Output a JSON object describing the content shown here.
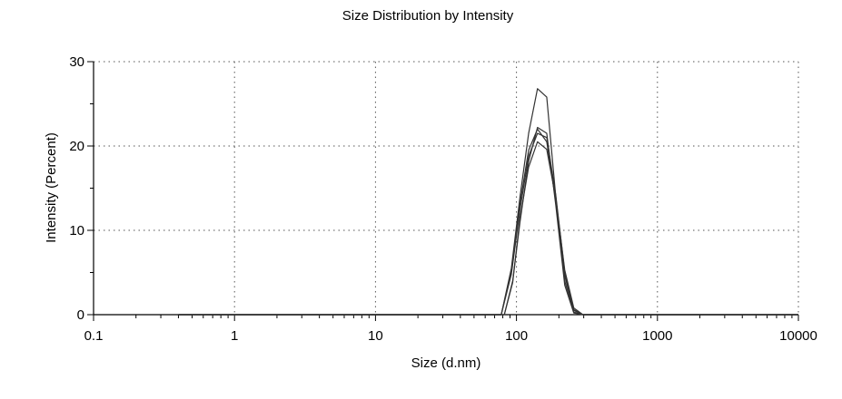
{
  "chart_data": {
    "type": "line",
    "title": "Size Distribution by Intensity",
    "xlabel": "Size (d.nm)",
    "ylabel": "Intensity (Percent)",
    "x_scale": "log",
    "xlim": [
      0.1,
      10000
    ],
    "ylim": [
      0,
      30
    ],
    "x_ticks": [
      0.1,
      1,
      10,
      100,
      1000,
      10000
    ],
    "x_tick_labels": [
      "0.1",
      "1",
      "10",
      "100",
      "1000",
      "10000"
    ],
    "y_ticks": [
      0,
      10,
      20,
      30
    ],
    "y_tick_labels": [
      "0",
      "10",
      "20",
      "30"
    ],
    "grid": true,
    "series": [
      {
        "color": "#333333",
        "x": [
          0.4,
          78,
          92,
          106,
          122,
          141,
          164,
          190,
          220,
          255,
          296,
          10000
        ],
        "y": [
          0,
          0,
          5.5,
          14.0,
          21.5,
          26.8,
          25.8,
          14.0,
          4.0,
          0.3,
          0,
          0
        ]
      },
      {
        "color": "#333333",
        "x": [
          0.4,
          78,
          92,
          106,
          122,
          141,
          164,
          190,
          220,
          255,
          296,
          10000
        ],
        "y": [
          0,
          0,
          5.2,
          13.2,
          19.5,
          22.0,
          20.5,
          13.5,
          4.6,
          0.5,
          0,
          0
        ]
      },
      {
        "color": "#333333",
        "x": [
          0.4,
          78,
          92,
          106,
          122,
          141,
          164,
          190,
          220,
          255,
          296,
          10000
        ],
        "y": [
          0,
          0,
          4.8,
          12.5,
          18.8,
          21.5,
          21.0,
          14.2,
          5.0,
          0.6,
          0,
          0
        ]
      },
      {
        "color": "#333333",
        "x": [
          0.4,
          82,
          94,
          106,
          122,
          141,
          164,
          190,
          220,
          255,
          296,
          10000
        ],
        "y": [
          0,
          0,
          4.0,
          11.0,
          18.2,
          22.2,
          21.5,
          13.0,
          3.5,
          0.2,
          0,
          0
        ]
      },
      {
        "color": "#333333",
        "x": [
          0.4,
          82,
          94,
          106,
          122,
          141,
          164,
          190,
          220,
          255,
          296,
          10000
        ],
        "y": [
          0,
          0,
          3.8,
          11.5,
          17.5,
          20.5,
          19.6,
          13.8,
          5.3,
          0.8,
          0,
          0
        ]
      }
    ]
  }
}
